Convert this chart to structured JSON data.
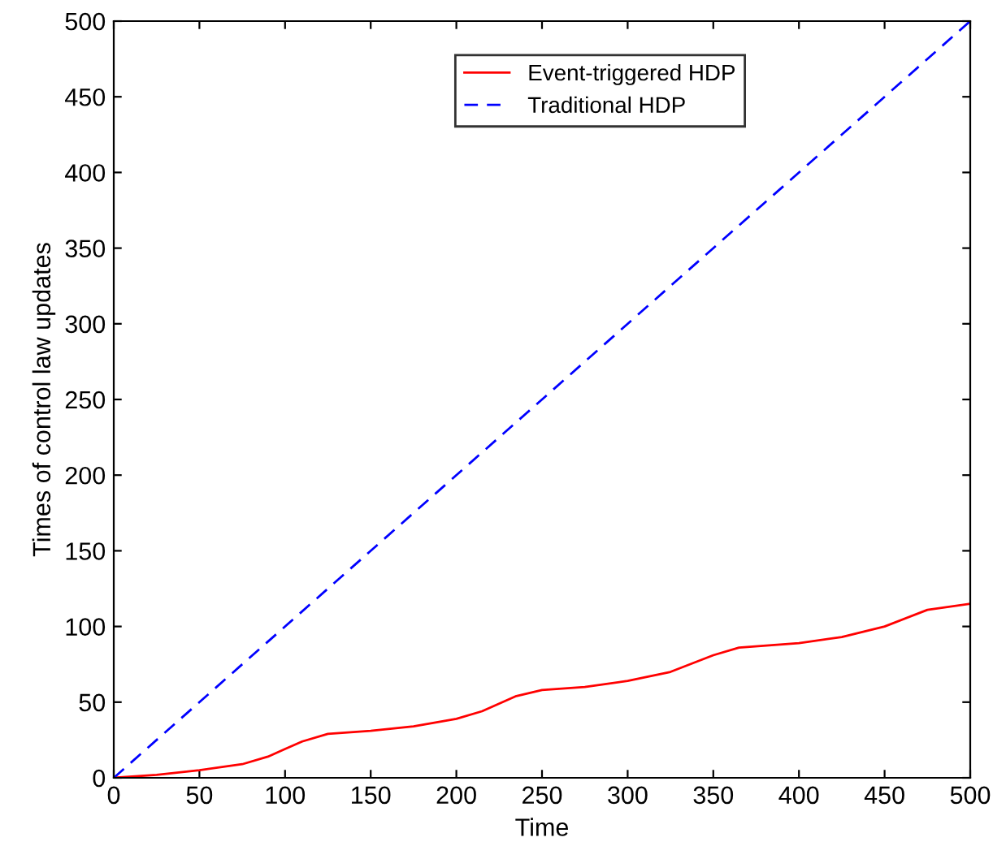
{
  "chart_data": {
    "type": "line",
    "xlabel": "Time",
    "ylabel": "Times of control law updates",
    "xlim": [
      0,
      500
    ],
    "ylim": [
      0,
      500
    ],
    "xticks": [
      0,
      50,
      100,
      150,
      200,
      250,
      300,
      350,
      400,
      450,
      500
    ],
    "yticks": [
      0,
      50,
      100,
      150,
      200,
      250,
      300,
      350,
      400,
      450,
      500
    ],
    "grid": false,
    "legend": "top right",
    "marker": "none",
    "series": [
      {
        "name": "Event-triggered HDP",
        "color": "#ff0000",
        "line_style": "solid",
        "x": [
          0,
          25,
          50,
          75,
          90,
          100,
          110,
          125,
          150,
          175,
          200,
          215,
          235,
          250,
          275,
          300,
          325,
          350,
          365,
          400,
          425,
          450,
          475,
          500
        ],
        "values": [
          0,
          2,
          5,
          9,
          14,
          19,
          24,
          29,
          31,
          34,
          39,
          44,
          54,
          58,
          60,
          64,
          70,
          81,
          86,
          89,
          93,
          100,
          111,
          115
        ]
      },
      {
        "name": "Traditional HDP",
        "color": "#0000ff",
        "line_style": "dashed",
        "x": [
          0,
          500
        ],
        "values": [
          0,
          500
        ]
      }
    ]
  }
}
